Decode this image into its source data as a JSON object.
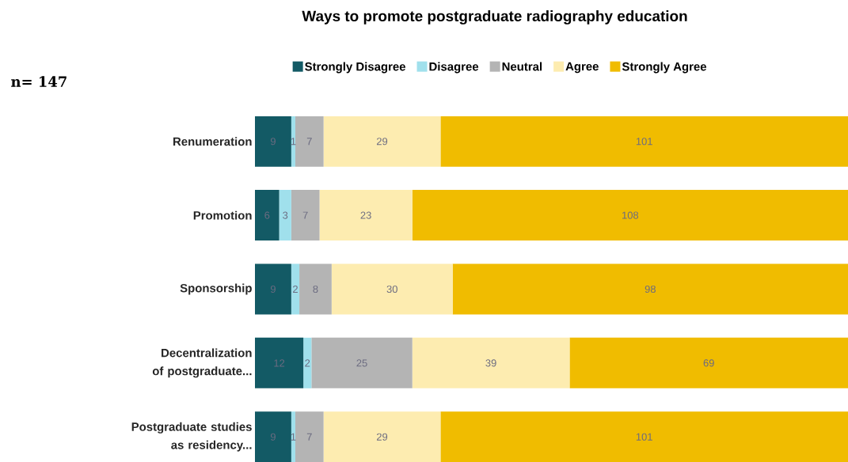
{
  "chart_data": {
    "type": "bar",
    "orientation": "horizontal",
    "stacked": true,
    "title": "Ways to promote postgraduate radiography education",
    "annotations": [
      "n= 147"
    ],
    "categories": [
      "Renumeration",
      "Promotion",
      "Sponsorship",
      "Decentralization of postgraduate...",
      "Postgraduate studies as residency..."
    ],
    "series": [
      {
        "name": "Strongly Disagree",
        "color": "#135a65",
        "values": [
          9,
          6,
          9,
          12,
          9
        ]
      },
      {
        "name": "Disagree",
        "color": "#a0e0ec",
        "values": [
          1,
          3,
          2,
          2,
          1
        ]
      },
      {
        "name": "Neutral",
        "color": "#b4b4b4",
        "values": [
          7,
          7,
          8,
          25,
          7
        ]
      },
      {
        "name": "Agree",
        "color": "#fdecb0",
        "values": [
          29,
          23,
          30,
          39,
          29
        ]
      },
      {
        "name": "Strongly Agree",
        "color": "#f0bc00",
        "values": [
          101,
          108,
          98,
          69,
          101
        ]
      }
    ],
    "data_labels": true,
    "legend": "top"
  }
}
